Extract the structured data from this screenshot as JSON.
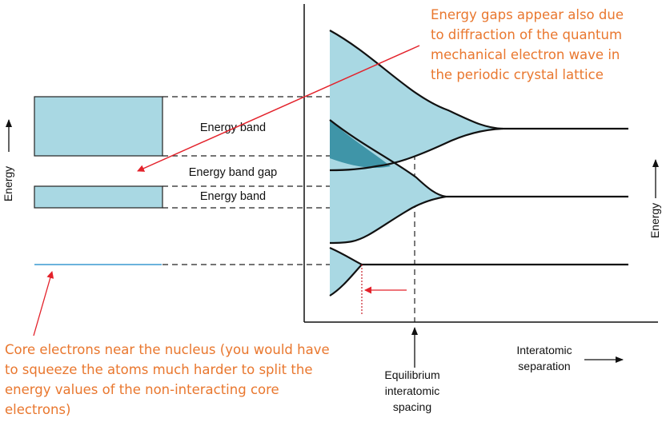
{
  "diagram": {
    "left_labels": {
      "upper_band": "Energy band",
      "gap": "Energy band gap",
      "lower_band": "Energy band"
    },
    "axes": {
      "left_energy_label": "Energy",
      "right_energy_label": "Energy",
      "x_label_line1": "Interatomic",
      "x_label_line2": "separation",
      "equilibrium_line1": "Equilibrium",
      "equilibrium_line2": "interatomic",
      "equilibrium_line3": "spacing"
    },
    "annotations": {
      "energy_gaps": "Energy gaps appear also due\nto diffraction of the quantum\nmechanical electron wave in\nthe periodic crystal lattice",
      "core_electrons": "Core electrons near the nucleus (you would have\nto squeeze the atoms much harder to split the\nenergy values of the non-interacting core\nelectrons)"
    },
    "colors": {
      "band_fill": "#a9d8e3",
      "band_dark": "#3f95a8",
      "core_line": "#3a9ad0",
      "annotation_text": "#e9772e",
      "arrow_red": "#e3222b",
      "line": "#111111"
    }
  }
}
